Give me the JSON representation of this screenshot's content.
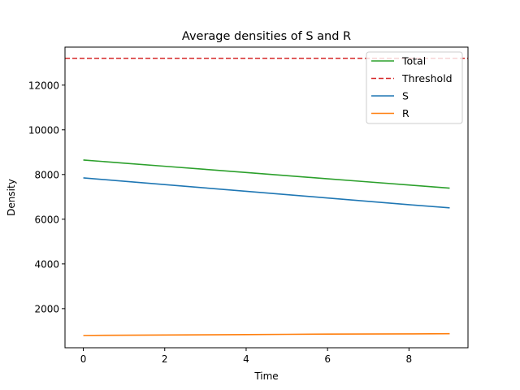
{
  "chart_data": {
    "type": "line",
    "title": "Average densities of S and R",
    "xlabel": "Time",
    "ylabel": "Density",
    "xlim": [
      -0.45,
      9.45
    ],
    "ylim": [
      250,
      13700
    ],
    "xticks": [
      0,
      2,
      4,
      6,
      8
    ],
    "yticks": [
      2000,
      4000,
      6000,
      8000,
      10000,
      12000
    ],
    "grid": false,
    "legend_position": "top-right",
    "series": [
      {
        "name": "Total",
        "color": "#2ca02c",
        "style": "solid",
        "x": [
          0,
          1,
          2,
          3,
          4,
          5,
          6,
          7,
          8,
          9
        ],
        "y": [
          8650,
          8510,
          8370,
          8230,
          8090,
          7950,
          7810,
          7670,
          7530,
          7390
        ]
      },
      {
        "name": "Threshold",
        "color": "#d62728",
        "style": "dashed",
        "y_const": 13200
      },
      {
        "name": "S",
        "color": "#1f77b4",
        "style": "solid",
        "x": [
          0,
          1,
          2,
          3,
          4,
          5,
          6,
          7,
          8,
          9
        ],
        "y": [
          7850,
          7700,
          7550,
          7400,
          7250,
          7100,
          6950,
          6800,
          6650,
          6510
        ]
      },
      {
        "name": "R",
        "color": "#ff7f0e",
        "style": "solid",
        "x": [
          0,
          1,
          2,
          3,
          4,
          5,
          6,
          7,
          8,
          9
        ],
        "y": [
          800,
          810,
          820,
          830,
          840,
          850,
          860,
          865,
          870,
          880
        ]
      }
    ]
  }
}
